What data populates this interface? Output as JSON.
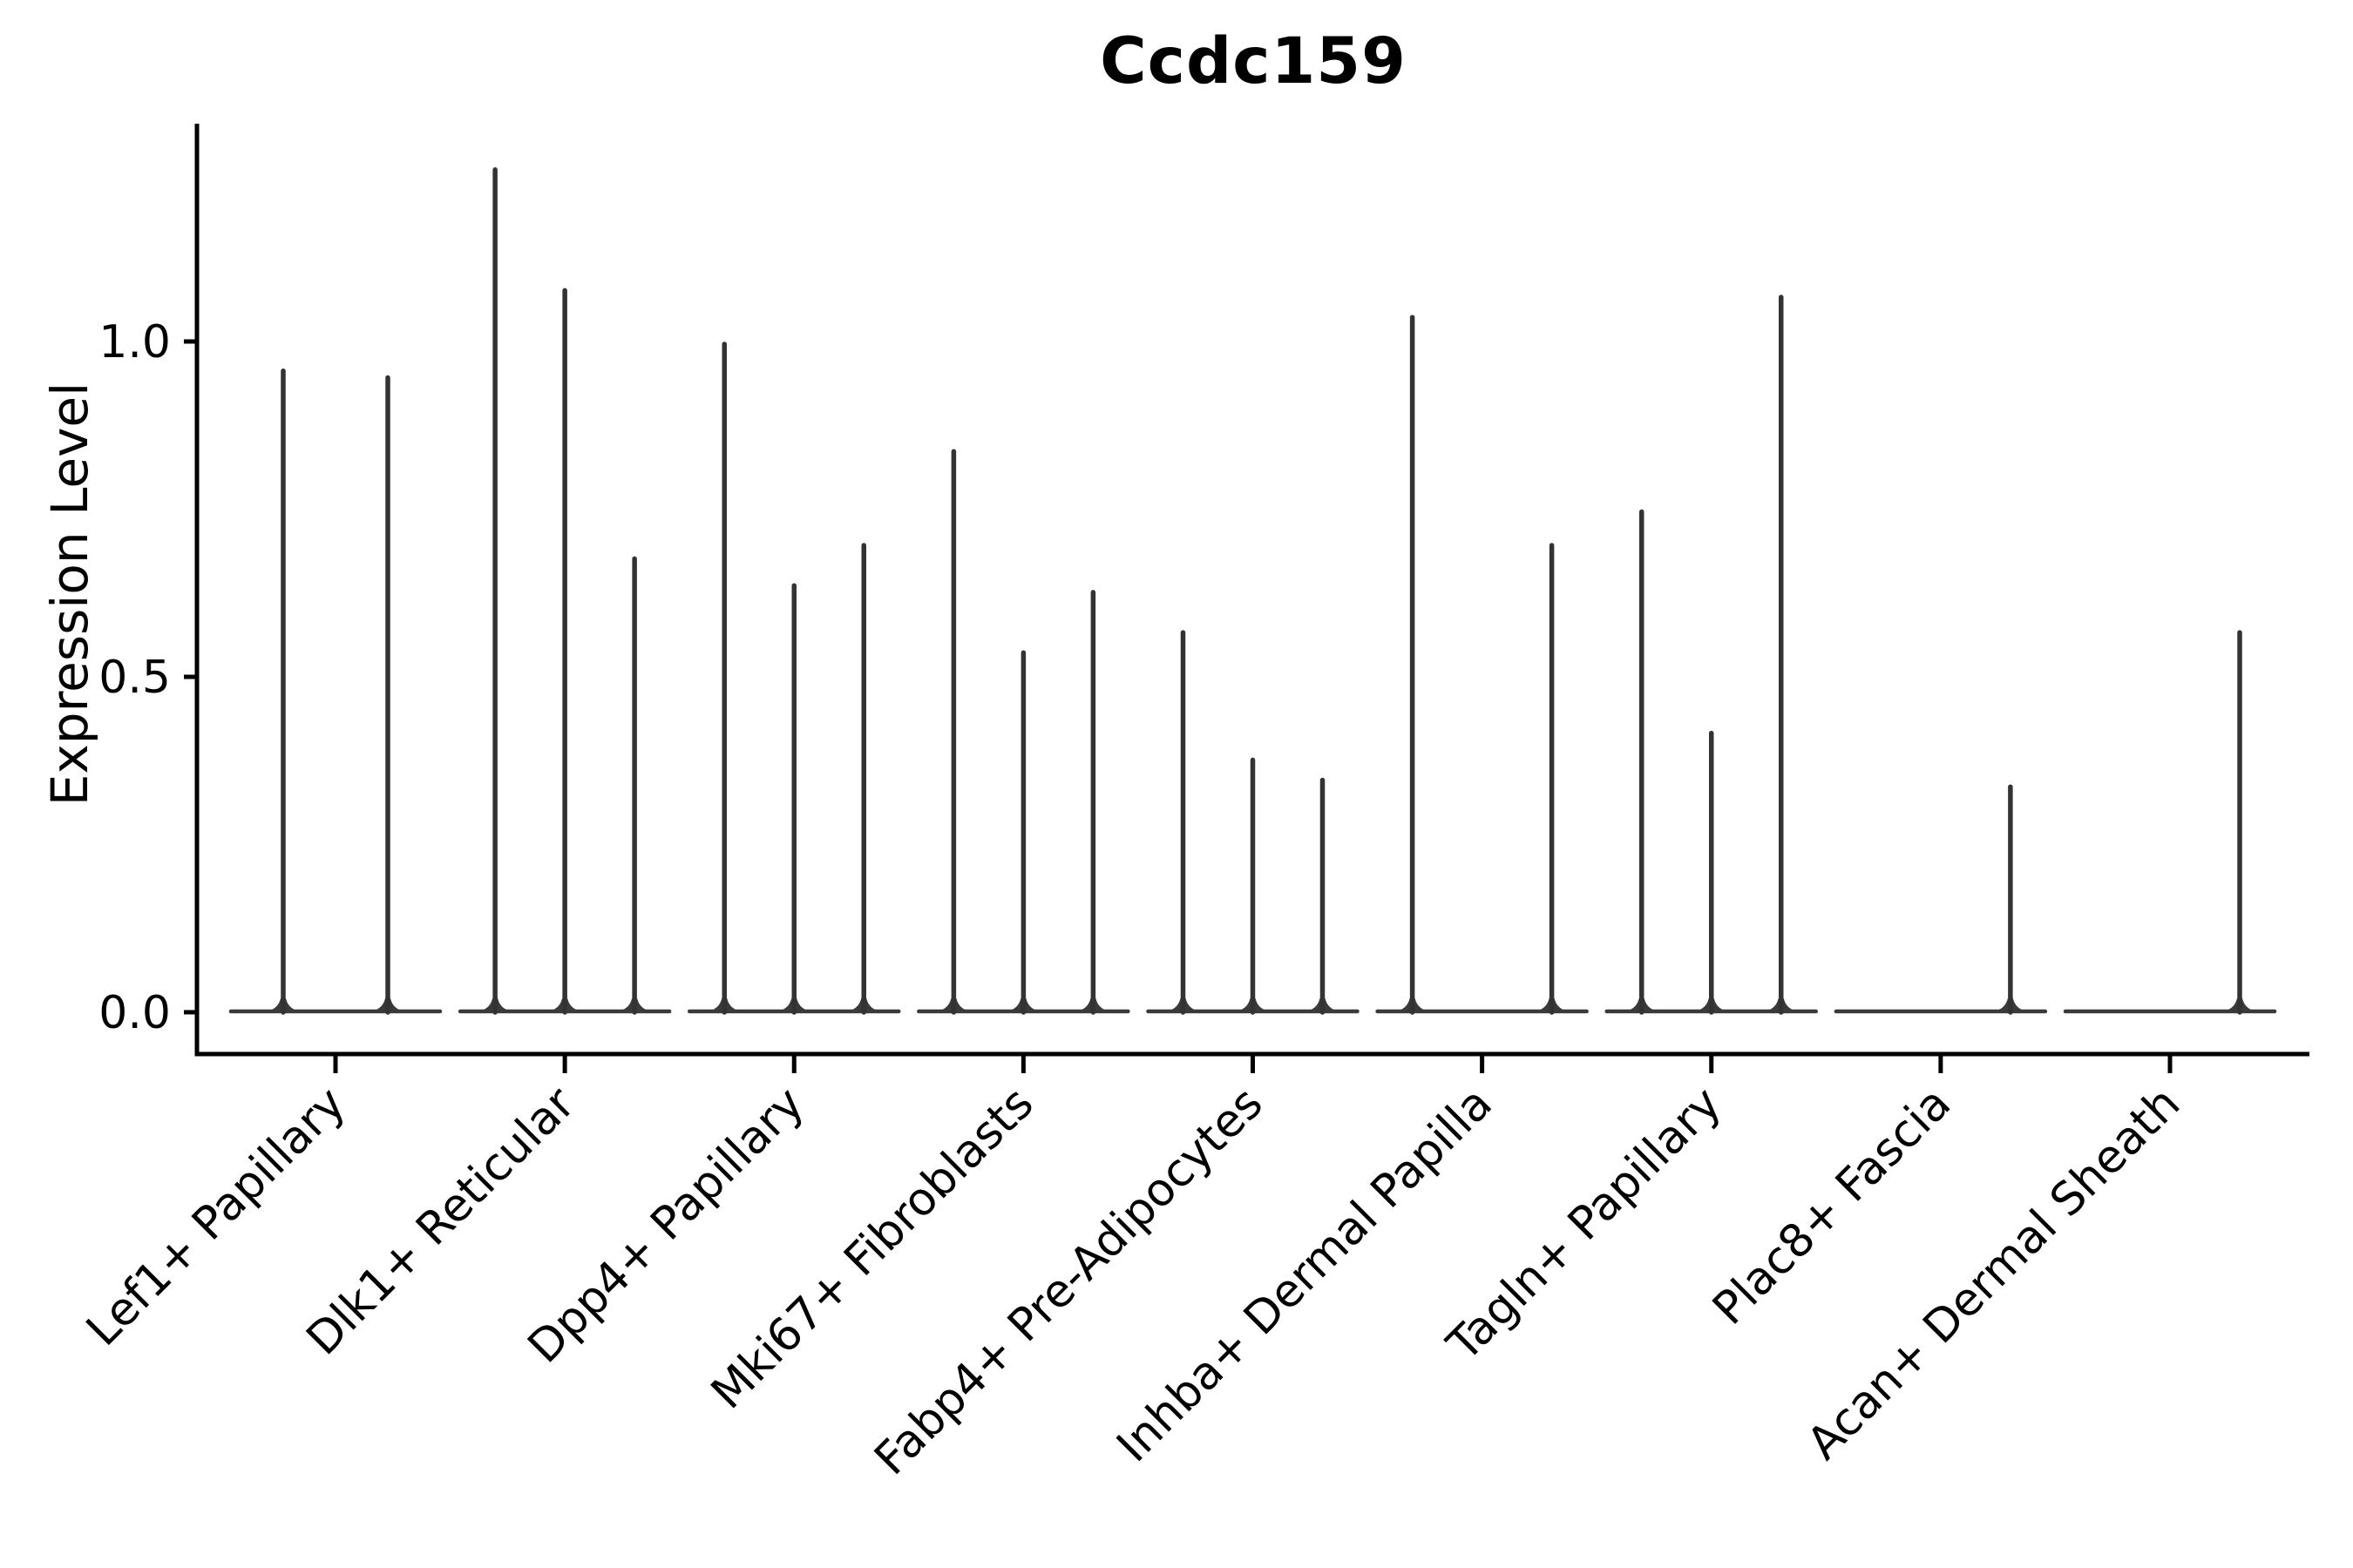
{
  "title": "Ccdc159",
  "y_axis_label": "Expression Level",
  "chart_data": {
    "type": "violin",
    "title": "Ccdc159",
    "xlabel": "",
    "ylabel": "Expression Level",
    "grid": false,
    "legend": "none",
    "ylim": [
      -0.06,
      1.32
    ],
    "yticks": [
      "0.0",
      "0.5",
      "1.0"
    ],
    "ytick_values": [
      0.0,
      0.5,
      1.0
    ],
    "categories": [
      "Lef1+ Papillary",
      "Dlk1+ Reticular",
      "Dpp4+ Papillary",
      "Mki67+ Fibroblasts",
      "Fabp4+ Pre-Adipocytes",
      "Inhba+ Dermal Papilla",
      "Tagln+ Papillary",
      "Plac8+ Fascia",
      "Acan+ Dermal Sheath"
    ],
    "description": "Thin violin plots per cell type; most expression mass at 0 (flat base line) with narrow spikes reaching the max expression value per violin.",
    "groups": [
      {
        "label": "Lef1+ Papillary",
        "slots": 2,
        "violins": [
          {
            "slot": 0,
            "max": 0.96
          },
          {
            "slot": 1,
            "max": 0.95
          }
        ]
      },
      {
        "label": "Dlk1+ Reticular",
        "slots": 3,
        "violins": [
          {
            "slot": 0,
            "max": 1.26
          },
          {
            "slot": 1,
            "max": 1.08
          },
          {
            "slot": 2,
            "max": 0.68
          }
        ]
      },
      {
        "label": "Dpp4+ Papillary",
        "slots": 3,
        "violins": [
          {
            "slot": 0,
            "max": 1.0
          },
          {
            "slot": 1,
            "max": 0.64
          },
          {
            "slot": 2,
            "max": 0.7
          }
        ]
      },
      {
        "label": "Mki67+ Fibroblasts",
        "slots": 3,
        "violins": [
          {
            "slot": 0,
            "max": 0.84
          },
          {
            "slot": 1,
            "max": 0.54
          },
          {
            "slot": 2,
            "max": 0.63
          }
        ]
      },
      {
        "label": "Fabp4+ Pre-Adipocytes",
        "slots": 3,
        "violins": [
          {
            "slot": 0,
            "max": 0.57
          },
          {
            "slot": 1,
            "max": 0.38
          },
          {
            "slot": 2,
            "max": 0.35
          }
        ]
      },
      {
        "label": "Inhba+ Dermal Papilla",
        "slots": 3,
        "violins": [
          {
            "slot": 0,
            "max": 1.04
          },
          {
            "slot": 2,
            "max": 0.7
          }
        ]
      },
      {
        "label": "Tagln+ Papillary",
        "slots": 3,
        "violins": [
          {
            "slot": 0,
            "max": 0.75
          },
          {
            "slot": 1,
            "max": 0.42
          },
          {
            "slot": 2,
            "max": 1.07
          }
        ]
      },
      {
        "label": "Plac8+ Fascia",
        "slots": 3,
        "violins": [
          {
            "slot": 2,
            "max": 0.34
          }
        ]
      },
      {
        "label": "Acan+ Dermal Sheath",
        "slots": 3,
        "violins": [
          {
            "slot": 2,
            "max": 0.57
          }
        ]
      }
    ],
    "colors": {
      "violin": "#333333",
      "baseline": "#3a3a3a",
      "axis": "#000000",
      "text": "#000000",
      "background": "#ffffff"
    }
  }
}
